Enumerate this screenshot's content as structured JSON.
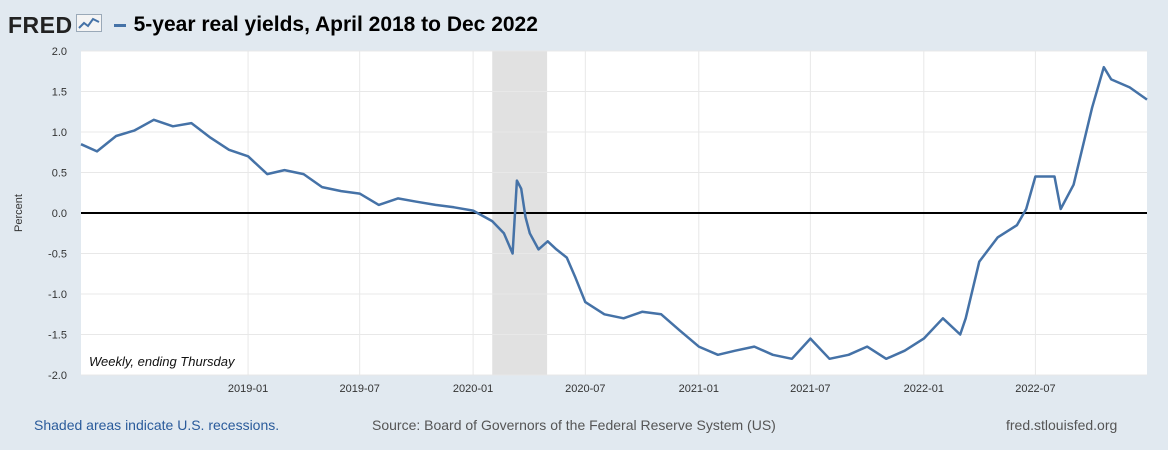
{
  "header": {
    "logo": "FRED",
    "logo_icon": "line-chart-icon",
    "title": "5-year real yields, April 2018 to Dec 2022"
  },
  "footer": {
    "recession_note": "Shaded areas indicate U.S. recessions.",
    "source": "Source: Board of Governors of the Federal Reserve System (US)",
    "url": "fred.stlouisfed.org"
  },
  "colors": {
    "series": "#4572a7",
    "background": "#e1e9f0",
    "plot": "#ffffff",
    "recession": "#e1e1e1",
    "grid": "#e8e8e8",
    "zero_line": "#000000"
  },
  "chart_data": {
    "type": "line",
    "title": "5-year real yields, April 2018 to Dec 2022",
    "ylabel": "Percent",
    "xlabel": "",
    "annotation": "Weekly, ending Thursday",
    "ylim": [
      -2.0,
      2.0
    ],
    "xlim": [
      "2018-04-05",
      "2022-12-29"
    ],
    "grid": true,
    "yticks": [
      "2.0",
      "1.5",
      "1.0",
      "0.5",
      "0.0",
      "-0.5",
      "-1.0",
      "-1.5",
      "-2.0"
    ],
    "xticks": [
      "2019-01",
      "2019-07",
      "2020-01",
      "2020-07",
      "2021-01",
      "2021-07",
      "2022-01",
      "2022-07"
    ],
    "recession": {
      "start": "2020-02-01",
      "end": "2020-04-30"
    },
    "reference_line": 0.0,
    "series": [
      {
        "x": [
          "2018-04-05",
          "2018-05-01",
          "2018-06-01",
          "2018-07-01",
          "2018-08-01",
          "2018-09-01",
          "2018-10-01",
          "2018-11-01",
          "2018-12-01",
          "2019-01-01",
          "2019-02-01",
          "2019-03-01",
          "2019-04-01",
          "2019-05-01",
          "2019-06-01",
          "2019-07-01",
          "2019-08-01",
          "2019-09-01",
          "2019-10-01",
          "2019-11-01",
          "2019-12-01",
          "2020-01-01",
          "2020-02-01",
          "2020-02-20",
          "2020-03-05",
          "2020-03-12",
          "2020-03-19",
          "2020-03-26",
          "2020-04-02",
          "2020-04-16",
          "2020-05-01",
          "2020-05-15",
          "2020-06-01",
          "2020-06-15",
          "2020-07-01",
          "2020-08-01",
          "2020-09-01",
          "2020-10-01",
          "2020-11-01",
          "2020-12-01",
          "2021-01-01",
          "2021-02-01",
          "2021-03-01",
          "2021-04-01",
          "2021-05-01",
          "2021-06-01",
          "2021-07-01",
          "2021-08-01",
          "2021-09-01",
          "2021-10-01",
          "2021-11-01",
          "2021-12-01",
          "2022-01-01",
          "2022-02-01",
          "2022-03-01",
          "2022-03-10",
          "2022-04-01",
          "2022-05-01",
          "2022-06-01",
          "2022-06-16",
          "2022-07-01",
          "2022-08-01",
          "2022-08-11",
          "2022-09-01",
          "2022-10-01",
          "2022-10-20",
          "2022-11-01",
          "2022-12-01",
          "2022-12-29"
        ],
        "y": [
          0.85,
          0.76,
          0.95,
          1.02,
          1.15,
          1.07,
          1.11,
          0.93,
          0.78,
          0.7,
          0.48,
          0.53,
          0.48,
          0.32,
          0.27,
          0.24,
          0.1,
          0.18,
          0.14,
          0.1,
          0.07,
          0.03,
          -0.1,
          -0.25,
          -0.5,
          0.4,
          0.3,
          -0.05,
          -0.25,
          -0.45,
          -0.35,
          -0.45,
          -0.55,
          -0.8,
          -1.1,
          -1.25,
          -1.3,
          -1.22,
          -1.25,
          -1.45,
          -1.65,
          -1.75,
          -1.7,
          -1.65,
          -1.75,
          -1.8,
          -1.55,
          -1.8,
          -1.75,
          -1.65,
          -1.8,
          -1.7,
          -1.55,
          -1.3,
          -1.5,
          -1.3,
          -0.6,
          -0.3,
          -0.15,
          0.05,
          0.45,
          0.45,
          0.05,
          0.35,
          1.3,
          1.8,
          1.65,
          1.55,
          1.4
        ]
      }
    ]
  }
}
